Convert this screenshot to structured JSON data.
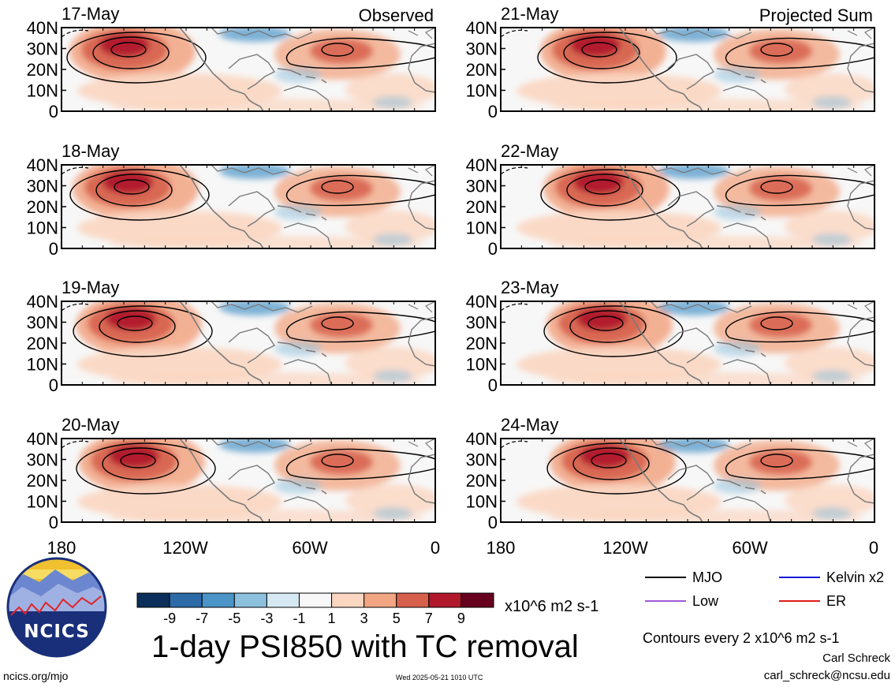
{
  "columns": [
    {
      "id": "observed",
      "label": "Observed",
      "panels": [
        {
          "date": "17-May"
        },
        {
          "date": "18-May"
        },
        {
          "date": "19-May"
        },
        {
          "date": "20-May"
        }
      ]
    },
    {
      "id": "projected",
      "label": "Projected Sum",
      "panels": [
        {
          "date": "21-May"
        },
        {
          "date": "22-May"
        },
        {
          "date": "23-May"
        },
        {
          "date": "24-May"
        }
      ]
    }
  ],
  "lat_ticks": [
    "40N",
    "30N",
    "20N",
    "10N",
    "0"
  ],
  "lon_ticks": [
    "180",
    "120W",
    "60W",
    "0"
  ],
  "colorbar": {
    "ticks": [
      "-9",
      "-7",
      "-5",
      "-3",
      "-1",
      "1",
      "3",
      "5",
      "7",
      "9"
    ],
    "colors": [
      "#0b2f5a",
      "#2d6aa8",
      "#4a94c8",
      "#8cc0dd",
      "#d6e8f2",
      "#f7f7f7",
      "#fbd6c1",
      "#f2a582",
      "#d7604d",
      "#b1182b",
      "#67001f"
    ],
    "units": "x10^6 m2 s-1"
  },
  "title": "1-day PSI850 with TC removal",
  "legend": [
    {
      "label": "MJO",
      "color": "#000000"
    },
    {
      "label": "Kelvin x2",
      "color": "#1616d8"
    },
    {
      "label": "Low",
      "color": "#a05ad8"
    },
    {
      "label": "ER",
      "color": "#e01a1a"
    }
  ],
  "contour_note": "Contours every 2 x10^6 m2 s-1",
  "author": "Carl Schreck",
  "email": "carl_schreck@ncsu.edu",
  "site": "ncics.org/mjo",
  "timestamp": "Wed 2025-05-21 1010 UTC",
  "logo_text": "NCICS",
  "colors": {
    "land_outline": "#7a7a7a",
    "frame": "#000000",
    "background": "#ffffff"
  }
}
